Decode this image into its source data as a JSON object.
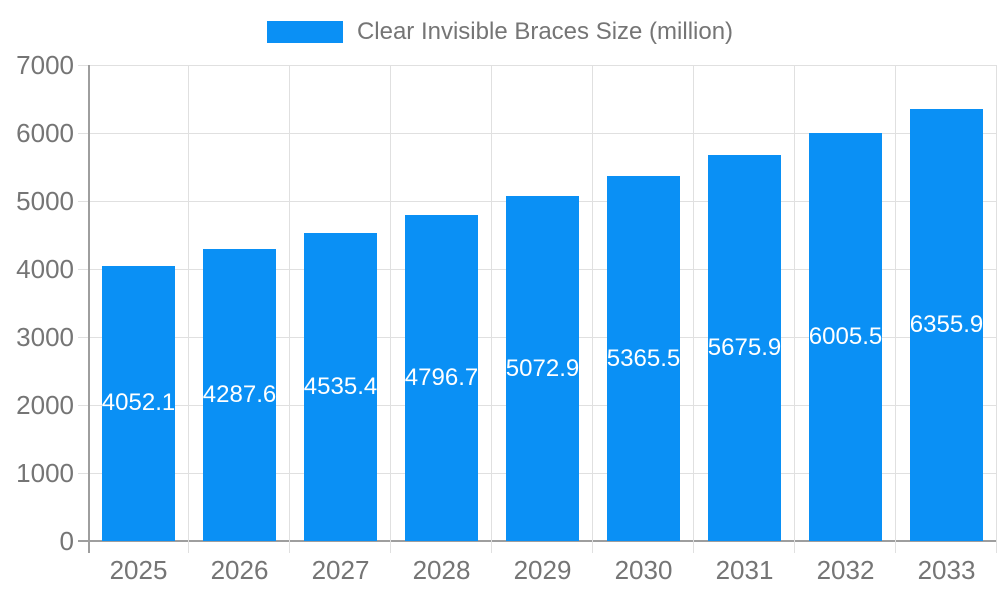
{
  "chart_data": {
    "type": "bar",
    "title": "Clear Invisible Braces Size (million)",
    "categories": [
      "2025",
      "2026",
      "2027",
      "2028",
      "2029",
      "2030",
      "2031",
      "2032",
      "2033"
    ],
    "series": [
      {
        "name": "Clear Invisible Braces Size (million)",
        "values": [
          4052.1,
          4287.6,
          4535.4,
          4796.7,
          5072.9,
          5365.5,
          5675.9,
          6005.5,
          6355.9
        ]
      }
    ],
    "xlabel": "",
    "ylabel": "",
    "ylim": [
      0,
      7000
    ],
    "y_tick_step": 1000,
    "y_tick_labels": [
      "0",
      "1000",
      "2000",
      "3000",
      "4000",
      "5000",
      "6000",
      "7000"
    ],
    "value_label_decimals": 1,
    "grid": true,
    "legend_position": "top-center",
    "bar_labels": "white text centered at mid-height of each bar",
    "colors": {
      "bar": "#0A90F5",
      "grid_line": "#e0e0e0",
      "axis_line": "#9e9e9e",
      "axis_text": "#757575",
      "bar_label_text": "#ffffff",
      "background": "#ffffff"
    }
  }
}
